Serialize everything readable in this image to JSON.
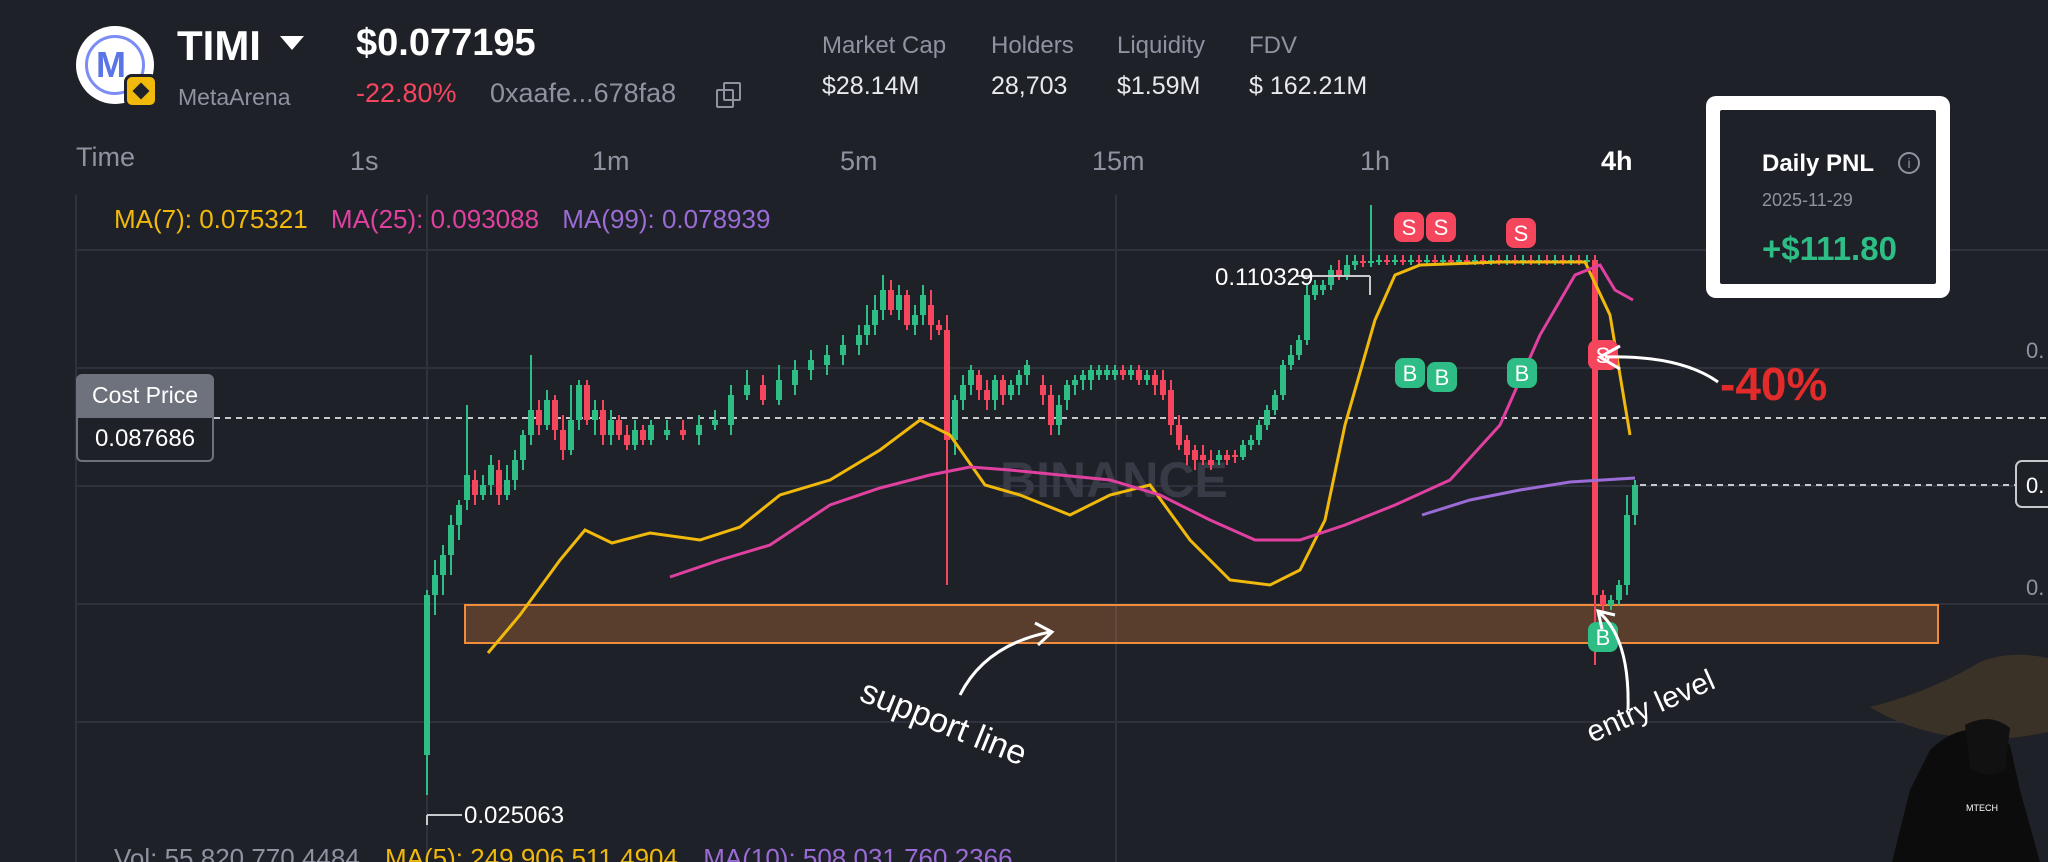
{
  "token": {
    "symbol": "TIMI",
    "name": "MetaArena",
    "price": "$0.077195",
    "change": "-22.80%",
    "address": "0xaafe...678fa8"
  },
  "stats": [
    {
      "label": "Market Cap",
      "value": "$28.14M"
    },
    {
      "label": "Holders",
      "value": "28,703"
    },
    {
      "label": "Liquidity",
      "value": "$1.59M"
    },
    {
      "label": "FDV",
      "value": "$ 162.21M"
    }
  ],
  "time": {
    "label": "Time",
    "intervals": [
      "1s",
      "1m",
      "5m",
      "15m",
      "1h",
      "4h"
    ],
    "active": "4h"
  },
  "ma": {
    "ma7": "MA(7): 0.075321",
    "ma25": "MA(25): 0.093088",
    "ma99": "MA(99): 0.078939"
  },
  "volume_legend": {
    "vol": "Vol: 55,820,770.4484",
    "ma5": "MA(5): 249,906,511.4904",
    "ma10": "MA(10): 508,031,760.2366"
  },
  "cost_price": {
    "label": "Cost Price",
    "value": "0.087686"
  },
  "daily_pnl": {
    "title": "Daily PNL",
    "date": "2025-11-29",
    "value": "+$111.80"
  },
  "annotations": {
    "high": "0.110329",
    "low": "0.025063",
    "drop": "-40%",
    "support": "support line",
    "entry": "entry level",
    "watermark": "BINANCE",
    "creator": "MTECH"
  },
  "markers": [
    {
      "label": "S",
      "type": "sell"
    },
    {
      "label": "S",
      "type": "sell"
    },
    {
      "label": "S",
      "type": "sell"
    },
    {
      "label": "S",
      "type": "sell"
    },
    {
      "label": "B",
      "type": "buy"
    },
    {
      "label": "B",
      "type": "buy"
    },
    {
      "label": "B",
      "type": "buy"
    },
    {
      "label": "B",
      "type": "buy"
    }
  ],
  "colors": {
    "background": "#1f2129",
    "up": "#2ebd85",
    "down": "#f6465d",
    "ma7": "#f0b90b",
    "ma25": "#e040a0",
    "ma99": "#9b6bd6",
    "support_zone": "#f08c3c"
  },
  "icons": [
    "caret-down-icon",
    "copy-icon",
    "info-icon",
    "bnb-chain-icon"
  ],
  "chart_data": {
    "type": "candlestick",
    "indicators": [
      "MA(7)",
      "MA(25)",
      "MA(99)"
    ],
    "high": 0.110329,
    "low": 0.025063,
    "cost_price": 0.087686
  }
}
